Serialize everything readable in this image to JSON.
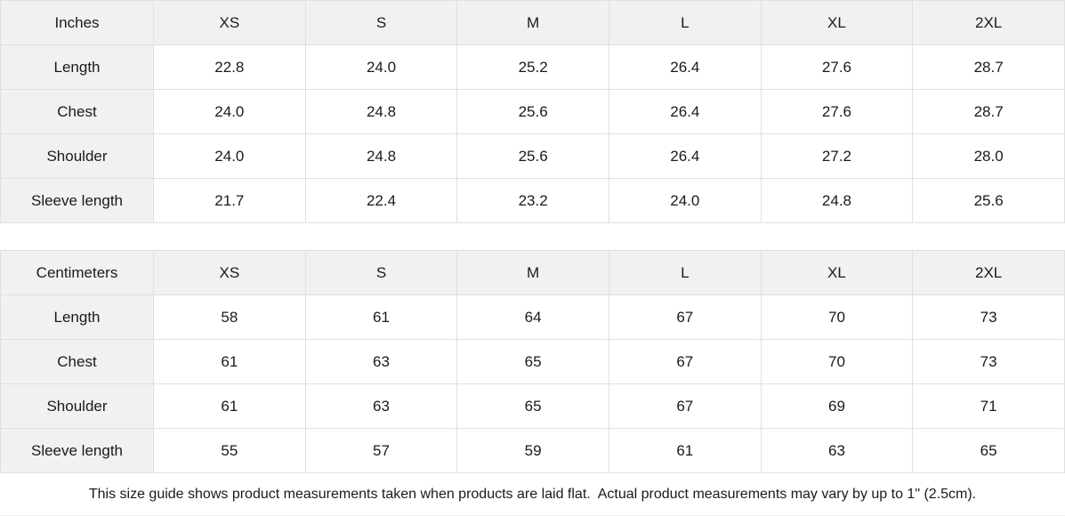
{
  "size_guide": {
    "sizes": [
      "XS",
      "S",
      "M",
      "L",
      "XL",
      "2XL"
    ],
    "tables": [
      {
        "unit_label": "Inches",
        "rows": [
          {
            "label": "Length",
            "values": [
              "22.8",
              "24.0",
              "25.2",
              "26.4",
              "27.6",
              "28.7"
            ]
          },
          {
            "label": "Chest",
            "values": [
              "24.0",
              "24.8",
              "25.6",
              "26.4",
              "27.6",
              "28.7"
            ]
          },
          {
            "label": "Shoulder",
            "values": [
              "24.0",
              "24.8",
              "25.6",
              "26.4",
              "27.2",
              "28.0"
            ]
          },
          {
            "label": "Sleeve length",
            "values": [
              "21.7",
              "22.4",
              "23.2",
              "24.0",
              "24.8",
              "25.6"
            ]
          }
        ]
      },
      {
        "unit_label": "Centimeters",
        "rows": [
          {
            "label": "Length",
            "values": [
              "58",
              "61",
              "64",
              "67",
              "70",
              "73"
            ]
          },
          {
            "label": "Chest",
            "values": [
              "61",
              "63",
              "65",
              "67",
              "70",
              "73"
            ]
          },
          {
            "label": "Shoulder",
            "values": [
              "61",
              "63",
              "65",
              "67",
              "69",
              "71"
            ]
          },
          {
            "label": "Sleeve length",
            "values": [
              "55",
              "57",
              "59",
              "61",
              "63",
              "65"
            ]
          }
        ]
      }
    ],
    "footer_note": "This size guide shows product measurements taken when products are laid flat.  Actual product measurements may vary by up to 1\" (2.5cm).",
    "colors": {
      "header_bg": "#f1f1f1",
      "border": "#e0e0e0",
      "text": "#1a1a1a"
    }
  },
  "chart_data": [
    {
      "type": "table",
      "title": "Inches",
      "columns": [
        "Inches",
        "XS",
        "S",
        "M",
        "L",
        "XL",
        "2XL"
      ],
      "rows": [
        [
          "Length",
          22.8,
          24.0,
          25.2,
          26.4,
          27.6,
          28.7
        ],
        [
          "Chest",
          24.0,
          24.8,
          25.6,
          26.4,
          27.6,
          28.7
        ],
        [
          "Shoulder",
          24.0,
          24.8,
          25.6,
          26.4,
          27.2,
          28.0
        ],
        [
          "Sleeve length",
          21.7,
          22.4,
          23.2,
          24.0,
          24.8,
          25.6
        ]
      ]
    },
    {
      "type": "table",
      "title": "Centimeters",
      "columns": [
        "Centimeters",
        "XS",
        "S",
        "M",
        "L",
        "XL",
        "2XL"
      ],
      "rows": [
        [
          "Length",
          58,
          61,
          64,
          67,
          70,
          73
        ],
        [
          "Chest",
          61,
          63,
          65,
          67,
          70,
          73
        ],
        [
          "Shoulder",
          61,
          63,
          65,
          67,
          69,
          71
        ],
        [
          "Sleeve length",
          55,
          57,
          59,
          61,
          63,
          65
        ]
      ]
    }
  ]
}
